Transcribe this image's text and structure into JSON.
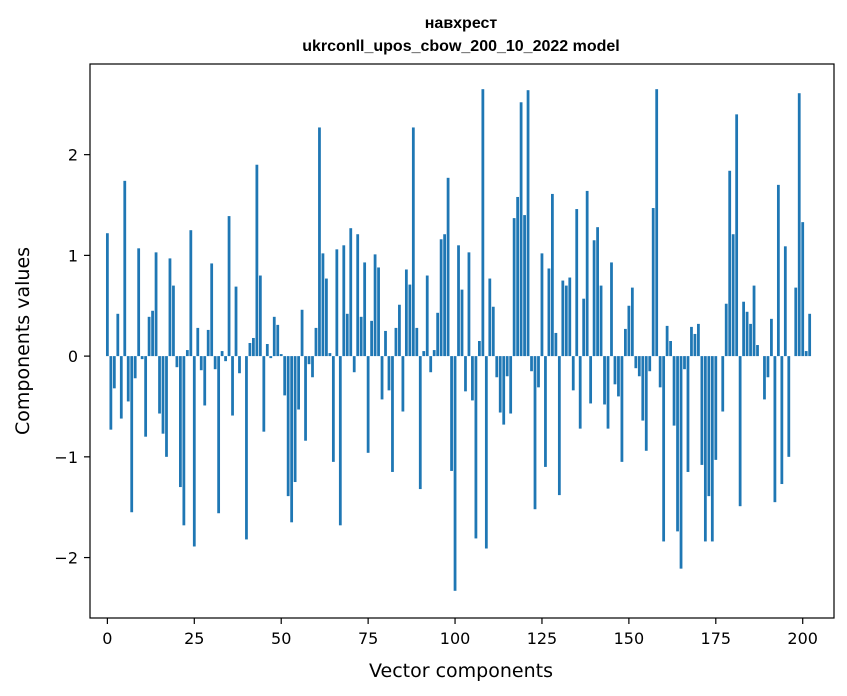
{
  "chart_data": {
    "type": "bar",
    "title": "навхрест",
    "subtitle": "ukrconll_upos_cbow_200_10_2022 model",
    "xlabel": "Vector components",
    "ylabel": "Components values",
    "xlim": [
      -5,
      209
    ],
    "ylim": [
      -2.6,
      2.9
    ],
    "xticks": [
      0,
      25,
      50,
      75,
      100,
      125,
      150,
      175,
      200
    ],
    "xtick_labels": [
      "0",
      "25",
      "50",
      "75",
      "100",
      "125",
      "150",
      "175",
      "200"
    ],
    "yticks": [
      -2,
      -1,
      0,
      1,
      2
    ],
    "ytick_labels": [
      "−2",
      "−1",
      "0",
      "1",
      "2"
    ],
    "bar_color": "#1f77b4",
    "grid": false,
    "legend": "none",
    "values": [
      1.22,
      -0.73,
      -0.32,
      0.42,
      -0.62,
      1.74,
      -0.45,
      -1.55,
      -0.22,
      1.07,
      -0.03,
      -0.8,
      0.39,
      0.45,
      1.03,
      -0.57,
      -0.77,
      -1.0,
      0.97,
      0.7,
      -0.11,
      -1.3,
      -1.68,
      0.06,
      1.25,
      -1.89,
      0.28,
      -0.14,
      -0.49,
      0.26,
      0.92,
      -0.13,
      -1.56,
      0.05,
      -0.05,
      1.39,
      -0.59,
      0.69,
      -0.17,
      0.0,
      -1.82,
      0.13,
      0.18,
      1.9,
      0.8,
      -0.75,
      0.12,
      -0.02,
      0.39,
      0.31,
      0.02,
      -0.39,
      -1.39,
      -1.65,
      -1.25,
      -0.53,
      0.46,
      -0.84,
      -0.08,
      -0.21,
      0.28,
      2.27,
      1.02,
      0.77,
      0.03,
      -1.05,
      1.06,
      -1.68,
      1.1,
      0.42,
      1.27,
      -0.16,
      1.21,
      0.39,
      0.93,
      -0.96,
      0.35,
      1.01,
      0.88,
      -0.43,
      0.25,
      -0.34,
      -1.15,
      0.28,
      0.51,
      -0.55,
      0.86,
      0.71,
      2.27,
      0.28,
      -1.32,
      0.05,
      0.8,
      -0.16,
      0.06,
      0.43,
      1.16,
      1.21,
      1.77,
      -1.14,
      -2.33,
      1.1,
      0.66,
      -0.35,
      1.03,
      -0.44,
      -1.81,
      0.15,
      2.65,
      -1.91,
      0.77,
      0.49,
      -0.21,
      -0.56,
      -0.68,
      -0.2,
      -0.57,
      1.37,
      1.58,
      2.52,
      1.4,
      2.64,
      -0.15,
      -1.52,
      -0.31,
      1.02,
      -1.1,
      0.87,
      1.61,
      0.23,
      -1.38,
      0.75,
      0.7,
      0.78,
      -0.34,
      1.46,
      -0.72,
      0.57,
      1.64,
      -0.47,
      1.15,
      1.28,
      0.7,
      -0.48,
      -0.72,
      0.93,
      -0.28,
      -0.4,
      -1.05,
      0.27,
      0.5,
      0.68,
      -0.12,
      -0.2,
      -0.64,
      -0.94,
      -0.15,
      1.47,
      2.65,
      -0.31,
      -1.84,
      0.3,
      0.15,
      -0.69,
      -1.74,
      -2.11,
      -0.13,
      -1.15,
      0.29,
      0.22,
      0.32,
      -1.08,
      -1.84,
      -1.39,
      -1.84,
      -1.03,
      0.0,
      -0.55,
      0.52,
      1.84,
      1.21,
      2.4,
      -1.49,
      0.54,
      0.44,
      0.32,
      0.7,
      0.11,
      0.0,
      -0.43,
      -0.21,
      0.37,
      -1.45,
      1.7,
      -1.27,
      1.09,
      -1.0,
      0.0,
      0.68,
      2.61,
      1.33,
      0.05,
      0.42
    ]
  }
}
